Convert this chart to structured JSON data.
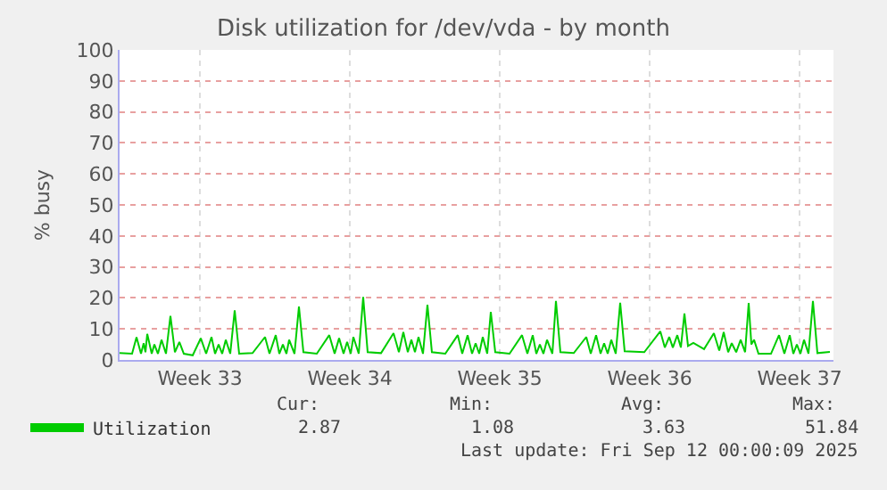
{
  "chart_data": {
    "type": "line",
    "title": "Disk utilization for /dev/vda - by month",
    "ylabel": "% busy",
    "x": [
      "2025-08-10T06:00",
      "2025-08-10T20:00",
      "2025-08-11T01:00",
      "2025-08-11T06:00",
      "2025-08-11T09:00",
      "2025-08-11T11:00",
      "2025-08-11T13:00",
      "2025-08-11T18:00",
      "2025-08-11T21:00",
      "2025-08-12T01:00",
      "2025-08-12T05:00",
      "2025-08-12T10:00",
      "2025-08-12T15:00",
      "2025-08-12T20:00",
      "2025-08-13T01:00",
      "2025-08-13T06:00",
      "2025-08-13T16:00",
      "2025-08-14T01:00",
      "2025-08-14T07:00",
      "2025-08-14T13:00",
      "2025-08-14T17:00",
      "2025-08-14T21:00",
      "2025-08-15T01:00",
      "2025-08-15T05:00",
      "2025-08-15T10:00",
      "2025-08-15T15:00",
      "2025-08-15T20:00",
      "2025-08-16T11:00",
      "2025-08-17T01:00",
      "2025-08-17T06:00",
      "2025-08-17T13:00",
      "2025-08-17T17:00",
      "2025-08-17T21:00",
      "2025-08-18T01:00",
      "2025-08-18T04:00",
      "2025-08-18T10:00",
      "2025-08-18T15:00",
      "2025-08-18T20:00",
      "2025-08-19T11:00",
      "2025-08-20T01:00",
      "2025-08-20T07:00",
      "2025-08-20T12:00",
      "2025-08-20T17:00",
      "2025-08-20T21:00",
      "2025-08-21T01:00",
      "2025-08-21T04:00",
      "2025-08-21T10:00",
      "2025-08-21T15:00",
      "2025-08-21T20:00",
      "2025-08-22T11:00",
      "2025-08-23T01:00",
      "2025-08-23T07:00",
      "2025-08-23T12:00",
      "2025-08-23T17:00",
      "2025-08-23T21:00",
      "2025-08-24T01:00",
      "2025-08-24T05:00",
      "2025-08-24T10:00",
      "2025-08-24T15:00",
      "2025-08-24T20:00",
      "2025-08-25T11:00",
      "2025-08-26T01:00",
      "2025-08-26T06:00",
      "2025-08-26T12:00",
      "2025-08-26T17:00",
      "2025-08-26T21:00",
      "2025-08-27T01:00",
      "2025-08-27T05:00",
      "2025-08-27T10:00",
      "2025-08-27T14:00",
      "2025-08-27T19:00",
      "2025-08-28T11:00",
      "2025-08-29T01:00",
      "2025-08-29T07:00",
      "2025-08-29T13:00",
      "2025-08-29T17:00",
      "2025-08-29T21:00",
      "2025-08-30T01:00",
      "2025-08-30T05:00",
      "2025-08-30T11:00",
      "2025-08-30T15:00",
      "2025-08-30T20:00",
      "2025-08-31T11:00",
      "2025-09-01T01:00",
      "2025-09-01T06:00",
      "2025-09-01T12:00",
      "2025-09-01T17:00",
      "2025-09-01T21:00",
      "2025-09-02T01:00",
      "2025-09-02T05:00",
      "2025-09-02T10:00",
      "2025-09-02T15:00",
      "2025-09-02T20:00",
      "2025-09-03T18:00",
      "2025-09-04T12:00",
      "2025-09-04T17:00",
      "2025-09-04T22:00",
      "2025-09-05T02:00",
      "2025-09-05T07:00",
      "2025-09-05T11:00",
      "2025-09-05T15:00",
      "2025-09-05T19:00",
      "2025-09-06T01:00",
      "2025-09-06T13:00",
      "2025-09-07T00:00",
      "2025-09-07T06:00",
      "2025-09-07T11:00",
      "2025-09-07T16:00",
      "2025-09-07T20:00",
      "2025-09-08T01:00",
      "2025-09-08T06:00",
      "2025-09-08T11:00",
      "2025-09-08T15:00",
      "2025-09-08T18:00",
      "2025-09-08T21:00",
      "2025-09-09T02:00",
      "2025-09-09T16:00",
      "2025-09-10T01:00",
      "2025-09-10T07:00",
      "2025-09-10T13:00",
      "2025-09-10T17:00",
      "2025-09-10T21:00",
      "2025-09-11T01:00",
      "2025-09-11T05:00",
      "2025-09-11T10:00",
      "2025-09-11T15:00",
      "2025-09-11T20:00",
      "2025-09-12T10:00"
    ],
    "series": [
      {
        "name": "Utilization",
        "color": "#00cc00",
        "values": [
          2.2,
          2,
          7.3,
          2,
          5.4,
          2.5,
          8.4,
          2,
          5,
          2,
          6.5,
          2,
          14.2,
          2.5,
          5.8,
          2,
          1.5,
          7,
          2,
          7.4,
          2,
          5,
          2,
          6.5,
          2,
          16,
          2,
          2.2,
          7.4,
          2,
          8,
          2,
          5,
          2,
          6.5,
          2,
          17.2,
          2.5,
          2,
          8,
          2,
          7,
          2,
          5.8,
          2,
          7.4,
          2,
          20.3,
          2.5,
          2.2,
          8.6,
          2.5,
          9,
          2.5,
          6.5,
          2.5,
          7.4,
          2,
          17.8,
          2.5,
          2,
          8,
          2,
          8,
          2,
          5.4,
          2,
          7.4,
          2,
          15.5,
          2.5,
          2,
          8,
          2,
          8,
          2,
          5,
          2,
          6.5,
          2,
          19,
          2.5,
          2.2,
          7.4,
          2,
          8,
          2,
          5.4,
          2,
          6.5,
          2,
          18.4,
          2.8,
          2.5,
          9.2,
          4,
          7.4,
          4,
          8,
          4,
          15,
          4.5,
          5.5,
          3.5,
          8.6,
          3,
          9,
          2.5,
          5.4,
          2.5,
          6.5,
          2.5,
          18.4,
          5,
          6.5,
          2,
          2,
          8,
          2,
          8,
          2,
          5,
          2,
          6.5,
          2,
          19,
          2.2,
          2.6
        ]
      }
    ],
    "xlim": [
      "2025-08-10T06:00",
      "2025-09-12T14:00"
    ],
    "xticks": [
      {
        "value": "2025-08-14",
        "label": "Week 33"
      },
      {
        "value": "2025-08-21",
        "label": "Week 34"
      },
      {
        "value": "2025-08-28",
        "label": "Week 35"
      },
      {
        "value": "2025-09-04",
        "label": "Week 36"
      },
      {
        "value": "2025-09-11",
        "label": "Week 37"
      }
    ],
    "ylim": [
      0,
      100
    ],
    "yticks": [
      0,
      10,
      20,
      30,
      40,
      50,
      60,
      70,
      80,
      90,
      100
    ],
    "grid": true,
    "legend": "bottom left",
    "marker": "none",
    "line_style": "solid",
    "annotations": [
      "Cur:",
      "Min:",
      "Avg:",
      "Max:",
      "2.87",
      "1.08",
      "3.63",
      "51.84",
      "Last update: Fri Sep 12 00:00:09 2025"
    ]
  }
}
